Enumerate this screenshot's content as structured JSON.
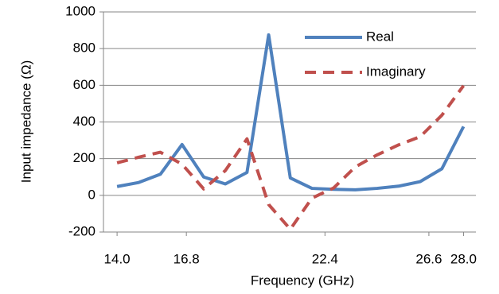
{
  "chart_data": {
    "type": "line",
    "xlabel": "Frequency (GHz)",
    "ylabel": "Input impedance (Ω)",
    "x": [
      14,
      14.875,
      15.75,
      16.625,
      17.5,
      18.375,
      19.25,
      20.125,
      21,
      21.875,
      22.75,
      23.625,
      24.5,
      25.375,
      26.25,
      27.125,
      28
    ],
    "series": [
      {
        "name": "Real",
        "color": "#4f81bd",
        "dash": false,
        "values": [
          48,
          70,
          115,
          277,
          100,
          62,
          125,
          875,
          95,
          38,
          33,
          30,
          38,
          50,
          75,
          145,
          375
        ]
      },
      {
        "name": "Imaginary",
        "color": "#c0504d",
        "dash": true,
        "values": [
          177,
          208,
          235,
          170,
          35,
          135,
          308,
          -50,
          -185,
          -15,
          40,
          155,
          220,
          275,
          320,
          437,
          598
        ]
      }
    ],
    "xlim": [
      13.45,
      28.5
    ],
    "xticks": [
      {
        "value": 14,
        "label": "14.0"
      },
      16.8,
      22.4,
      26.6,
      {
        "value": 28,
        "label": "28.0"
      }
    ],
    "ylim": [
      -200,
      1000
    ],
    "yticks": [
      -200,
      0,
      200,
      400,
      600,
      800,
      1000
    ],
    "grid": true,
    "legend": "upper right"
  }
}
